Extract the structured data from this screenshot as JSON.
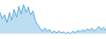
{
  "chart_data": {
    "type": "line",
    "x": [
      0,
      1,
      2,
      3,
      4,
      5,
      6,
      7,
      8,
      9,
      10,
      11,
      12,
      13,
      14,
      15,
      16,
      17,
      18,
      19,
      20,
      21,
      22,
      23,
      24,
      25,
      26,
      27,
      28,
      29,
      30,
      31,
      32,
      33,
      34,
      35,
      36,
      37,
      38,
      39,
      40,
      41,
      42,
      43,
      44,
      45
    ],
    "values": [
      38,
      30,
      35,
      25,
      38,
      28,
      42,
      32,
      46,
      36,
      48,
      38,
      45,
      35,
      40,
      28,
      22,
      18,
      14,
      18,
      14,
      16,
      12,
      14,
      12,
      14,
      12,
      13,
      11,
      13,
      11,
      14,
      12,
      15,
      13,
      16,
      14,
      17,
      15,
      18,
      14,
      17,
      20,
      16,
      19,
      15
    ],
    "color": "#5aabda",
    "xlim": [
      0,
      45
    ],
    "ylim": [
      4,
      54
    ],
    "grid": false,
    "tick_labels": false
  }
}
